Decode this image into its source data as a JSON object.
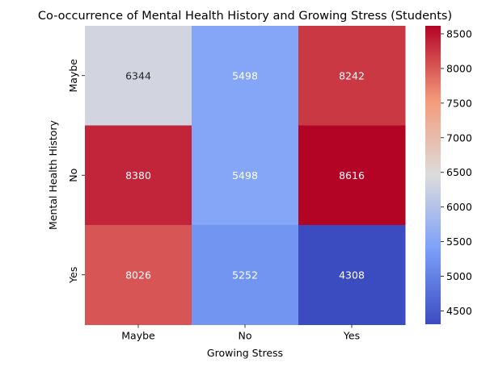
{
  "chart_data": {
    "type": "heatmap",
    "title": "Co-occurrence of Mental Health History and Growing Stress (Students)",
    "xlabel": "Growing Stress",
    "ylabel": "Mental Health History",
    "x_categories": [
      "Maybe",
      "No",
      "Yes"
    ],
    "y_categories": [
      "Maybe",
      "No",
      "Yes"
    ],
    "values": [
      [
        6344,
        5498,
        8242
      ],
      [
        8380,
        5498,
        8616
      ],
      [
        8026,
        5252,
        4308
      ]
    ],
    "colormap": "coolwarm",
    "vmin": 4308,
    "vmax": 8616,
    "colorbar_ticks": [
      4500,
      5000,
      5500,
      6000,
      6500,
      7000,
      7500,
      8000,
      8500
    ]
  }
}
